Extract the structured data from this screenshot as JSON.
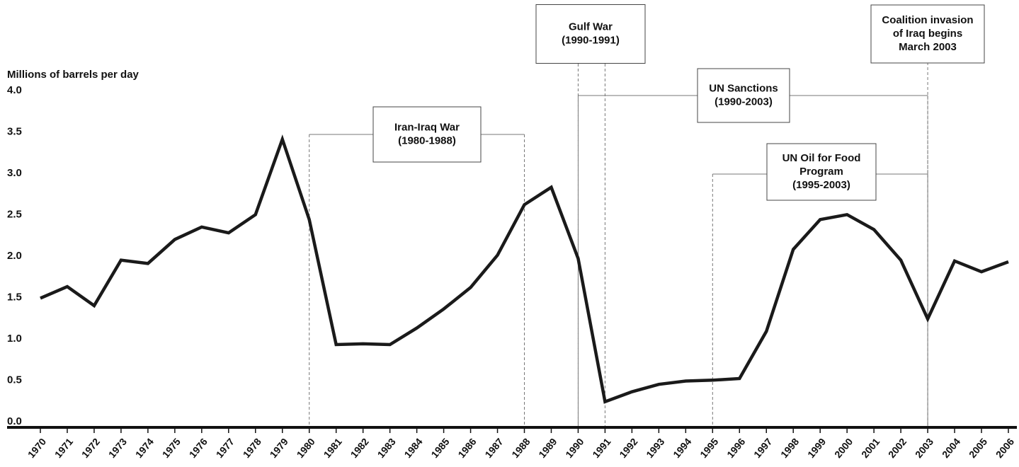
{
  "chart_data": {
    "type": "line",
    "ylabel": "Millions of barrels per day",
    "x": [
      1970,
      1971,
      1972,
      1973,
      1974,
      1975,
      1976,
      1977,
      1978,
      1979,
      1980,
      1981,
      1982,
      1983,
      1984,
      1985,
      1986,
      1987,
      1988,
      1989,
      1990,
      1991,
      1992,
      1993,
      1994,
      1995,
      1996,
      1997,
      1998,
      1999,
      2000,
      2001,
      2002,
      2003,
      2004,
      2005,
      2006
    ],
    "values": [
      1.56,
      1.7,
      1.47,
      2.02,
      1.98,
      2.27,
      2.42,
      2.35,
      2.57,
      3.48,
      2.51,
      1.0,
      1.01,
      1.0,
      1.2,
      1.43,
      1.69,
      2.08,
      2.69,
      2.9,
      2.04,
      0.31,
      0.43,
      0.52,
      0.56,
      0.57,
      0.59,
      1.16,
      2.15,
      2.51,
      2.57,
      2.39,
      2.02,
      1.31,
      2.01,
      1.88,
      2.0
    ],
    "color": "#1a1a1a",
    "xlim": [
      1970,
      2006
    ],
    "xticks": [
      1970,
      1971,
      1972,
      1973,
      1974,
      1975,
      1976,
      1977,
      1978,
      1979,
      1980,
      1981,
      1982,
      1983,
      1984,
      1985,
      1986,
      1987,
      1988,
      1989,
      1990,
      1991,
      1992,
      1993,
      1994,
      1995,
      1996,
      1997,
      1998,
      1999,
      2000,
      2001,
      2002,
      2003,
      2004,
      2005,
      2006
    ],
    "ylim": [
      0,
      4
    ],
    "yticks": [
      {
        "value": 0,
        "label": "0.0"
      },
      0.5,
      {
        "value": 1,
        "label": "1.0"
      },
      1.5,
      {
        "value": 2,
        "label": "2.0"
      },
      2.5,
      {
        "value": 3,
        "label": "3.0"
      },
      3.5,
      {
        "value": 4,
        "label": "4.0"
      }
    ],
    "annotations": [
      {
        "lines": [
          "Iran-Iraq War",
          "(1980-1988)"
        ],
        "start": 1980,
        "end": 1988
      },
      {
        "lines": [
          "Gulf War",
          "(1990-1991)"
        ],
        "start": 1990,
        "end": 1991
      },
      {
        "lines": [
          "UN Sanctions",
          "(1990-2003)"
        ],
        "start": 1990,
        "end": 2003
      },
      {
        "lines": [
          "UN Oil for Food",
          "Program",
          "(1995-2003)"
        ],
        "start": 1995,
        "end": 2003
      },
      {
        "lines": [
          "Coalition invasion",
          "of Iraq begins",
          "March 2003"
        ],
        "start": 2003
      }
    ]
  }
}
